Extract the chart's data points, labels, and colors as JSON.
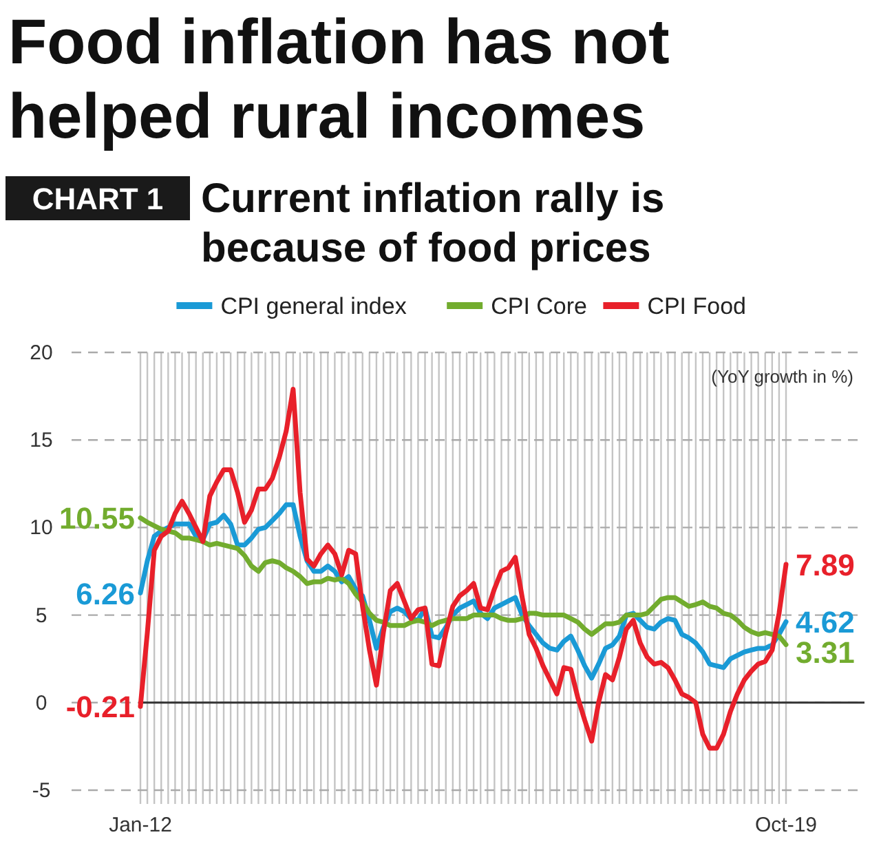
{
  "chart_data": {
    "type": "line",
    "title": "Food inflation has not helped rural incomes",
    "subtitle": "Current inflation rally is because of food prices",
    "annotations": [
      "CHART 1"
    ],
    "ylabel": "(YoY growth in %)",
    "categories": [
      "Jan-12",
      null,
      null,
      null,
      null,
      null,
      null,
      null,
      null,
      null,
      null,
      null,
      null,
      null,
      null,
      null,
      null,
      null,
      null,
      null,
      null,
      null,
      null,
      null,
      null,
      null,
      null,
      null,
      null,
      null,
      null,
      null,
      null,
      null,
      null,
      null,
      null,
      null,
      null,
      null,
      null,
      null,
      null,
      null,
      null,
      null,
      null,
      null,
      null,
      null,
      null,
      null,
      null,
      null,
      null,
      null,
      null,
      null,
      null,
      null,
      null,
      null,
      null,
      null,
      null,
      null,
      null,
      null,
      null,
      null,
      null,
      null,
      null,
      null,
      null,
      null,
      null,
      null,
      null,
      null,
      null,
      null,
      null,
      null,
      null,
      null,
      null,
      null,
      null,
      null,
      null,
      null,
      null,
      "Oct-19"
    ],
    "ylim": [
      -5,
      20
    ],
    "yticks": [
      -5,
      0,
      5,
      10,
      15,
      20
    ],
    "grid": true,
    "legend": "top",
    "ref_lines": [
      {
        "axis": "y",
        "value": 0,
        "color": "#333333",
        "line_style": "solid"
      }
    ],
    "series": [
      {
        "name": "CPI general index",
        "color": "#1a9ad6",
        "values": [
          6.26,
          8.1,
          9.5,
          9.8,
          10,
          10.2,
          10.2,
          10.2,
          9.5,
          9.3,
          10.2,
          10.3,
          10.7,
          10.2,
          9,
          9,
          9.4,
          9.9,
          10,
          10.4,
          10.8,
          11.3,
          11.3,
          9.5,
          8.1,
          7.5,
          7.5,
          7.8,
          7.5,
          6.9,
          7.2,
          6.5,
          6.1,
          4.7,
          3.1,
          4.3,
          5.2,
          5.4,
          5.2,
          4.8,
          4.7,
          5.4,
          3.8,
          3.7,
          4.3,
          5,
          5.4,
          5.6,
          5.8,
          5.1,
          4.8,
          5.4,
          5.6,
          5.8,
          6,
          5,
          4.4,
          3.9,
          3.4,
          3.1,
          3,
          3.5,
          3.8,
          3,
          2.1,
          1.4,
          2.2,
          3.1,
          3.3,
          3.8,
          5,
          5.1,
          4.7,
          4.3,
          4.2,
          4.6,
          4.8,
          4.7,
          3.9,
          3.7,
          3.4,
          2.9,
          2.2,
          2.1,
          2,
          2.5,
          2.7,
          2.9,
          3,
          3.1,
          3.1,
          3.3,
          3.9,
          4.62
        ],
        "value_labels": [
          "6.26",
          null,
          null,
          null,
          null,
          null,
          null,
          null,
          null,
          null,
          null,
          null,
          null,
          null,
          null,
          null,
          null,
          null,
          null,
          null,
          null,
          null,
          null,
          null,
          null,
          null,
          null,
          null,
          null,
          null,
          null,
          null,
          null,
          null,
          null,
          null,
          null,
          null,
          null,
          null,
          null,
          null,
          null,
          null,
          null,
          null,
          null,
          null,
          null,
          null,
          null,
          null,
          null,
          null,
          null,
          null,
          null,
          null,
          null,
          null,
          null,
          null,
          null,
          null,
          null,
          null,
          null,
          null,
          null,
          null,
          null,
          null,
          null,
          null,
          null,
          null,
          null,
          null,
          null,
          null,
          null,
          null,
          null,
          null,
          null,
          null,
          null,
          null,
          null,
          null,
          null,
          null,
          null,
          "4.62"
        ]
      },
      {
        "name": "CPI Core",
        "color": "#72ac2e",
        "values": [
          10.55,
          10.3,
          10.1,
          9.9,
          9.8,
          9.7,
          9.4,
          9.4,
          9.3,
          9.2,
          9,
          9.1,
          9,
          8.9,
          8.8,
          8.4,
          7.8,
          7.5,
          8,
          8.1,
          8,
          7.7,
          7.5,
          7.2,
          6.8,
          6.9,
          6.9,
          7.1,
          7,
          7.1,
          6.8,
          6.2,
          5.75,
          5.1,
          4.7,
          4.6,
          4.4,
          4.4,
          4.4,
          4.6,
          4.7,
          4.6,
          4.4,
          4.6,
          4.7,
          4.8,
          4.8,
          4.8,
          5,
          5,
          5,
          5,
          4.8,
          4.7,
          4.7,
          4.8,
          5.1,
          5.1,
          5,
          5,
          5,
          5,
          4.8,
          4.6,
          4.2,
          3.9,
          4.2,
          4.5,
          4.5,
          4.6,
          5,
          5,
          5,
          5.1,
          5.5,
          5.9,
          6,
          6,
          5.75,
          5.5,
          5.6,
          5.75,
          5.5,
          5.4,
          5.1,
          5,
          4.7,
          4.3,
          4.05,
          3.9,
          4,
          3.9,
          3.8,
          3.31
        ],
        "value_labels": [
          "10.55",
          null,
          null,
          null,
          null,
          null,
          null,
          null,
          null,
          null,
          null,
          null,
          null,
          null,
          null,
          null,
          null,
          null,
          null,
          null,
          null,
          null,
          null,
          null,
          null,
          null,
          null,
          null,
          null,
          null,
          null,
          null,
          null,
          null,
          null,
          null,
          null,
          null,
          null,
          null,
          null,
          null,
          null,
          null,
          null,
          null,
          null,
          null,
          null,
          null,
          null,
          null,
          null,
          null,
          null,
          null,
          null,
          null,
          null,
          null,
          null,
          null,
          null,
          null,
          null,
          null,
          null,
          null,
          null,
          null,
          null,
          null,
          null,
          null,
          null,
          null,
          null,
          null,
          null,
          null,
          null,
          null,
          null,
          null,
          null,
          null,
          null,
          null,
          null,
          null,
          null,
          null,
          null,
          "3.31"
        ]
      },
      {
        "name": "CPI Food",
        "color": "#e8202a",
        "values": [
          -0.21,
          4,
          8.7,
          9.5,
          9.8,
          10.8,
          11.5,
          10.8,
          10,
          9.2,
          11.8,
          12.6,
          13.3,
          13.3,
          12,
          10.3,
          11,
          12.2,
          12.2,
          12.8,
          14,
          15.5,
          17.9,
          12,
          8.2,
          7.8,
          8.5,
          9,
          8.5,
          7.3,
          8.7,
          8.5,
          5.5,
          3,
          1,
          4,
          6.4,
          6.8,
          5.8,
          4.8,
          5.3,
          5.4,
          2.2,
          2.1,
          4,
          5.5,
          6.1,
          6.4,
          6.8,
          5.4,
          5.3,
          6.5,
          7.5,
          7.7,
          8.3,
          6,
          3.9,
          3.1,
          2.1,
          1.3,
          0.5,
          2,
          1.9,
          0.3,
          -1,
          -2.2,
          0,
          1.6,
          1.3,
          2.6,
          4.2,
          4.7,
          3.4,
          2.6,
          2.2,
          2.3,
          2,
          1.3,
          0.5,
          0.3,
          0,
          -1.8,
          -2.6,
          -2.6,
          -1.8,
          -0.5,
          0.5,
          1.3,
          1.8,
          2.2,
          2.35,
          3,
          5.1,
          7.89
        ],
        "value_labels": [
          "-0.21",
          null,
          null,
          null,
          null,
          null,
          null,
          null,
          null,
          null,
          null,
          null,
          null,
          null,
          null,
          null,
          null,
          null,
          null,
          null,
          null,
          null,
          null,
          null,
          null,
          null,
          null,
          null,
          null,
          null,
          null,
          null,
          null,
          null,
          null,
          null,
          null,
          null,
          null,
          null,
          null,
          null,
          null,
          null,
          null,
          null,
          null,
          null,
          null,
          null,
          null,
          null,
          null,
          null,
          null,
          null,
          null,
          null,
          null,
          null,
          null,
          null,
          null,
          null,
          null,
          null,
          null,
          null,
          null,
          null,
          null,
          null,
          null,
          null,
          null,
          null,
          null,
          null,
          null,
          null,
          null,
          null,
          null,
          null,
          null,
          null,
          null,
          null,
          null,
          null,
          null,
          null,
          null,
          "7.89"
        ]
      }
    ]
  }
}
